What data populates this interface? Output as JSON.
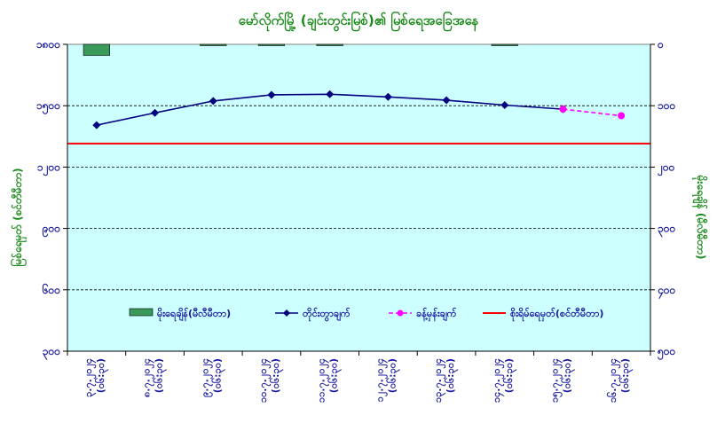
{
  "chart_data": {
    "type": "line",
    "title": "မော်လိုက်မြို့ (ချင်းတွင်းမြစ်)၏ မြစ်ရေအခြေအနေ",
    "ylabel_left": "မြစ်ရေမှတ် (စင်တီမီတာ)",
    "ylabel_right": "မိုးရေချိန် (မီလီမီတာ)",
    "y_left_ticks": [
      "၁၈၀၀",
      "၁၅၀၀",
      "၁၂၀၀",
      "၉၀၀",
      "၆၀၀",
      "၃၀၀"
    ],
    "y_right_ticks": [
      "၀",
      "၁၀၀",
      "၂၀၀",
      "၃၀၀",
      "၄၀၀",
      "၅၀၀"
    ],
    "ylim_left": [
      300,
      1800
    ],
    "ylim_right": [
      0,
      500
    ],
    "categories": [
      {
        "date": "၃.၇.၂၀၂၄",
        "time": "(၀၆:၃၀)"
      },
      {
        "date": "၈.၇.၂၀၂၄",
        "time": "(၀၆:၃၀)"
      },
      {
        "date": "၉.၇.၂၀၂၄",
        "time": "(၀၆:၃၀)"
      },
      {
        "date": "၁၀.၇.၂၀၂၄",
        "time": "(၀၆:၃၀)"
      },
      {
        "date": "၁၁.၇.၂၀၂၄",
        "time": "(၀၆:၃၀)"
      },
      {
        "date": "၁၂.၇.၂၀၂၄",
        "time": "(၀၆:၃၀)"
      },
      {
        "date": "၁၃.၇.၂၀၂၄",
        "time": "(၀၆:၃၀)"
      },
      {
        "date": "၁၄.၇.၂၀၂၄",
        "time": "(၀၆:၃၀)"
      },
      {
        "date": "၁၅.၇.၂၀၂၄",
        "time": "(၀၆:၃၀)"
      },
      {
        "date": "၁၆.၇.၂၀၂၄",
        "time": "(၀၆:၃၀)"
      }
    ],
    "series": [
      {
        "name": "မိုးရေချိန်(မီလီမီတာ)",
        "type": "bar",
        "axis": "right",
        "color": "#3a9a5a",
        "values": [
          18,
          0,
          2,
          2,
          2,
          0,
          0,
          1,
          0,
          0
        ]
      },
      {
        "name": "တိုင်းတွာချက်",
        "type": "line",
        "axis": "left",
        "color": "#000080",
        "values": [
          1405,
          1465,
          1523,
          1553,
          1556,
          1543,
          1527,
          1503,
          1483,
          null
        ]
      },
      {
        "name": "ခန့်မှန်းချက်",
        "type": "line",
        "axis": "left",
        "color": "#ff00ff",
        "dashed": true,
        "values": [
          null,
          null,
          null,
          null,
          null,
          null,
          null,
          null,
          1483,
          1451
        ]
      },
      {
        "name": "စိုးရိမ်ရေမှတ်(စင်တီမီတာ)",
        "type": "hline",
        "axis": "left",
        "color": "#ff0000",
        "value": 1315
      }
    ],
    "grid": "horizontal-dashed",
    "legend_position": "inside-bottom"
  }
}
